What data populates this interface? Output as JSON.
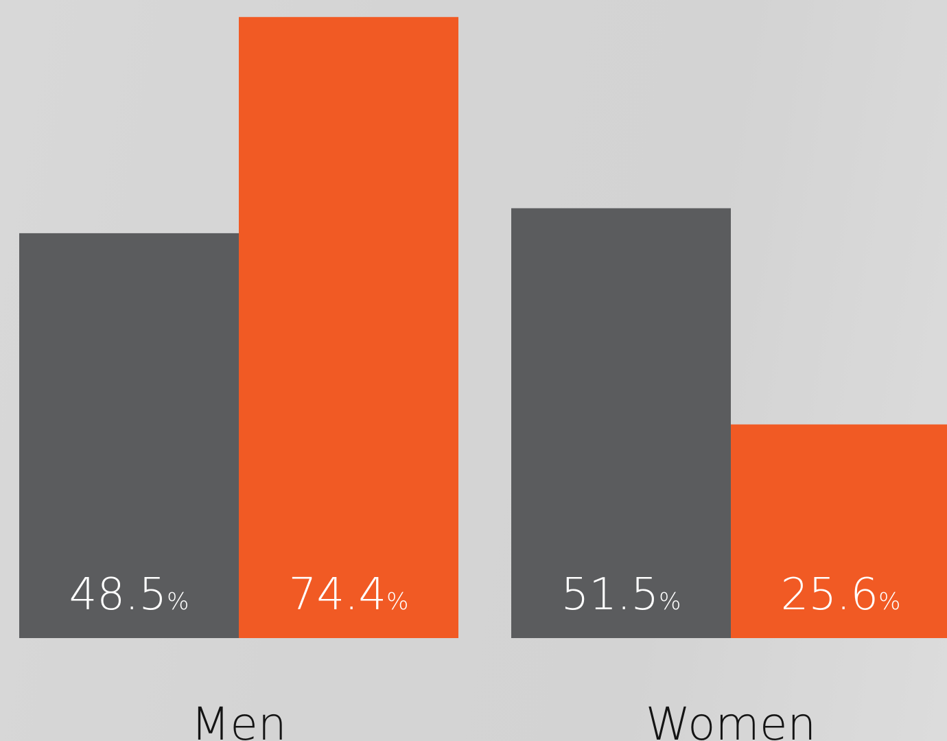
{
  "chart_data": {
    "type": "bar",
    "categories": [
      "Men",
      "Women"
    ],
    "series": [
      {
        "values": [
          48.5,
          51.5
        ],
        "color": "#5b5c5e"
      },
      {
        "values": [
          74.4,
          25.6
        ],
        "color": "#f15a24"
      }
    ],
    "value_suffix": "%",
    "ylim": [
      0,
      75
    ],
    "grid": false,
    "legend": "none"
  }
}
